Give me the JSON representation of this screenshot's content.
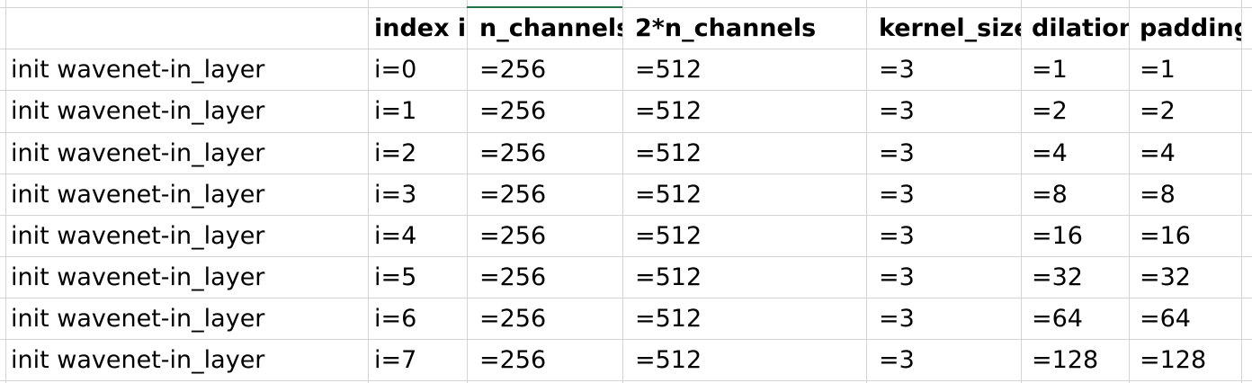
{
  "table": {
    "headers": [
      "",
      "index i",
      "n_channels",
      "2*n_channels",
      "kernel_size",
      "dilation",
      "padding"
    ],
    "rows": [
      [
        "init wavenet-in_layer",
        "i=0",
        "=256",
        "=512",
        "=3",
        "=1",
        "=1"
      ],
      [
        "init wavenet-in_layer",
        "i=1",
        "=256",
        "=512",
        "=3",
        "=2",
        "=2"
      ],
      [
        "init wavenet-in_layer",
        "i=2",
        "=256",
        "=512",
        "=3",
        "=4",
        "=4"
      ],
      [
        "init wavenet-in_layer",
        "i=3",
        "=256",
        "=512",
        "=3",
        "=8",
        "=8"
      ],
      [
        "init wavenet-in_layer",
        "i=4",
        "=256",
        "=512",
        "=3",
        "=16",
        "=16"
      ],
      [
        "init wavenet-in_layer",
        "i=5",
        "=256",
        "=512",
        "=3",
        "=32",
        "=32"
      ],
      [
        "init wavenet-in_layer",
        "i=6",
        "=256",
        "=512",
        "=3",
        "=64",
        "=64"
      ],
      [
        "init wavenet-in_layer",
        "i=7",
        "=256",
        "=512",
        "=3",
        "=128",
        "=128"
      ]
    ]
  },
  "colors": {
    "gridline": "#d4d4d4",
    "selection": "#217346",
    "text": "#000000",
    "background": "#ffffff"
  }
}
